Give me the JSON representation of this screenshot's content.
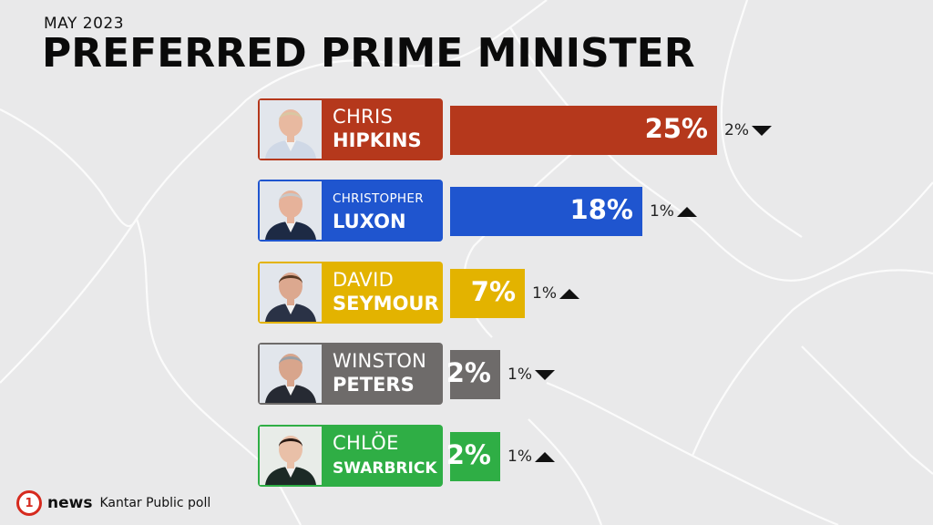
{
  "header": {
    "subtitle": "MAY 2023",
    "title": "PREFERRED PRIME MINISTER"
  },
  "chart_data": {
    "type": "bar",
    "orientation": "horizontal",
    "title": "PREFERRED PRIME MINISTER",
    "subtitle": "MAY 2023",
    "xlim": [
      0,
      25
    ],
    "unit": "%",
    "grid": false,
    "legend": "none",
    "categories": [
      "CHRIS HIPKINS",
      "CHRISTOPHER LUXON",
      "DAVID SEYMOUR",
      "WINSTON PETERS",
      "CHLÖE SWARBRICK"
    ],
    "rows": [
      {
        "first": "CHRIS",
        "last": "HIPKINS",
        "value": 25,
        "label": "25%",
        "change": "2%",
        "direction": "down",
        "color": "#b5381c"
      },
      {
        "first": "CHRISTOPHER",
        "last": "LUXON",
        "value": 18,
        "label": "18%",
        "change": "1%",
        "direction": "up",
        "color": "#1f55cf"
      },
      {
        "first": "DAVID",
        "last": "SEYMOUR",
        "value": 7,
        "label": "7%",
        "change": "1%",
        "direction": "up",
        "color": "#e3b300"
      },
      {
        "first": "WINSTON",
        "last": "PETERS",
        "value": 2,
        "label": "2%",
        "change": "1%",
        "direction": "down",
        "color": "#6e6b6a"
      },
      {
        "first": "CHLÖE",
        "last": "SWARBRICK",
        "value": 2,
        "label": "2%",
        "change": "1%",
        "direction": "up",
        "color": "#2fae45"
      }
    ]
  },
  "footer": {
    "logo_glyph": "1",
    "logo_text": "news",
    "source": "Kantar Public poll",
    "logo_color": "#d62a1e"
  }
}
